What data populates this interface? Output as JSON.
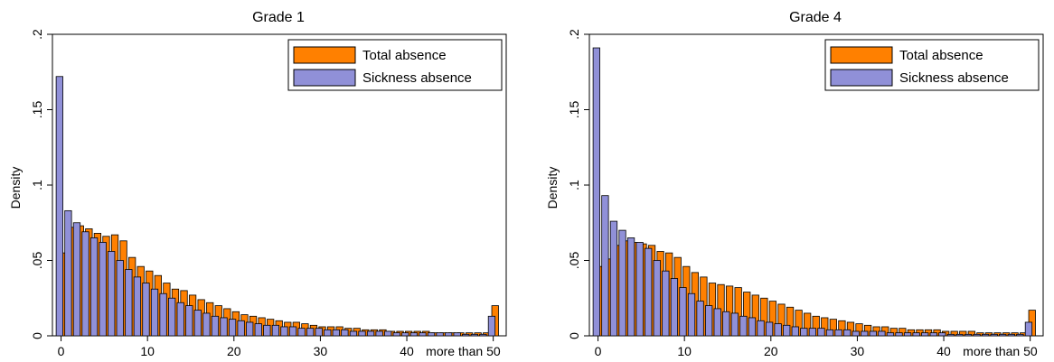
{
  "colors": {
    "total": "#ff8000",
    "sickness": "#9090d8",
    "outline": "#000000"
  },
  "chart_data": [
    {
      "type": "bar",
      "title": "Grade 1",
      "ylabel": "Density",
      "xlim": [
        -1,
        51.5
      ],
      "ylim": [
        0,
        0.2
      ],
      "xticks": [
        0,
        10,
        20,
        30,
        40
      ],
      "xtick_labels": [
        "0",
        "10",
        "20",
        "30",
        "40"
      ],
      "xtick_extra_label": "more than 50",
      "yticks": [
        0,
        0.05,
        0.1,
        0.15,
        0.2
      ],
      "ytick_labels": [
        "0",
        ".05",
        ".1",
        ".15",
        ".2"
      ],
      "grid": false,
      "legend": "top-right",
      "series": [
        {
          "name": "Total absence",
          "values": [
            0.055,
            0.072,
            0.073,
            0.071,
            0.068,
            0.066,
            0.067,
            0.063,
            0.052,
            0.046,
            0.043,
            0.04,
            0.035,
            0.031,
            0.03,
            0.027,
            0.024,
            0.022,
            0.02,
            0.018,
            0.016,
            0.014,
            0.013,
            0.012,
            0.011,
            0.01,
            0.009,
            0.009,
            0.008,
            0.007,
            0.006,
            0.006,
            0.006,
            0.005,
            0.005,
            0.004,
            0.004,
            0.004,
            0.003,
            0.003,
            0.003,
            0.003,
            0.003,
            0.002,
            0.002,
            0.002,
            0.002,
            0.002,
            0.002,
            0.002,
            0.02
          ]
        },
        {
          "name": "Sickness absence",
          "values": [
            0.172,
            0.083,
            0.075,
            0.069,
            0.065,
            0.062,
            0.056,
            0.05,
            0.044,
            0.039,
            0.035,
            0.031,
            0.028,
            0.025,
            0.022,
            0.02,
            0.017,
            0.015,
            0.013,
            0.012,
            0.011,
            0.01,
            0.009,
            0.008,
            0.007,
            0.007,
            0.006,
            0.006,
            0.005,
            0.005,
            0.005,
            0.004,
            0.004,
            0.004,
            0.003,
            0.003,
            0.003,
            0.003,
            0.003,
            0.002,
            0.002,
            0.002,
            0.002,
            0.002,
            0.002,
            0.002,
            0.002,
            0.001,
            0.001,
            0.001,
            0.013
          ]
        }
      ]
    },
    {
      "type": "bar",
      "title": "Grade 4",
      "ylabel": "Density",
      "xlim": [
        -1,
        51.5
      ],
      "ylim": [
        0,
        0.2
      ],
      "xticks": [
        0,
        10,
        20,
        30,
        40
      ],
      "xtick_labels": [
        "0",
        "10",
        "20",
        "30",
        "40"
      ],
      "xtick_extra_label": "more than 50",
      "yticks": [
        0,
        0.05,
        0.1,
        0.15,
        0.2
      ],
      "ytick_labels": [
        "0",
        ".05",
        ".1",
        ".15",
        ".2"
      ],
      "grid": false,
      "legend": "top-right",
      "series": [
        {
          "name": "Total absence",
          "values": [
            0.046,
            0.051,
            0.06,
            0.063,
            0.062,
            0.061,
            0.06,
            0.056,
            0.055,
            0.052,
            0.046,
            0.042,
            0.039,
            0.035,
            0.034,
            0.033,
            0.032,
            0.029,
            0.027,
            0.025,
            0.023,
            0.021,
            0.019,
            0.017,
            0.015,
            0.013,
            0.012,
            0.011,
            0.01,
            0.009,
            0.008,
            0.007,
            0.006,
            0.006,
            0.005,
            0.005,
            0.004,
            0.004,
            0.004,
            0.004,
            0.003,
            0.003,
            0.003,
            0.003,
            0.002,
            0.002,
            0.002,
            0.002,
            0.002,
            0.002,
            0.017
          ]
        },
        {
          "name": "Sickness absence",
          "values": [
            0.191,
            0.093,
            0.076,
            0.07,
            0.065,
            0.062,
            0.058,
            0.05,
            0.043,
            0.038,
            0.032,
            0.028,
            0.023,
            0.02,
            0.018,
            0.016,
            0.015,
            0.013,
            0.012,
            0.01,
            0.009,
            0.008,
            0.007,
            0.006,
            0.005,
            0.005,
            0.005,
            0.004,
            0.004,
            0.004,
            0.003,
            0.003,
            0.003,
            0.003,
            0.002,
            0.002,
            0.002,
            0.002,
            0.002,
            0.002,
            0.002,
            0.001,
            0.001,
            0.001,
            0.001,
            0.001,
            0.001,
            0.001,
            0.001,
            0.001,
            0.009
          ]
        }
      ]
    }
  ]
}
